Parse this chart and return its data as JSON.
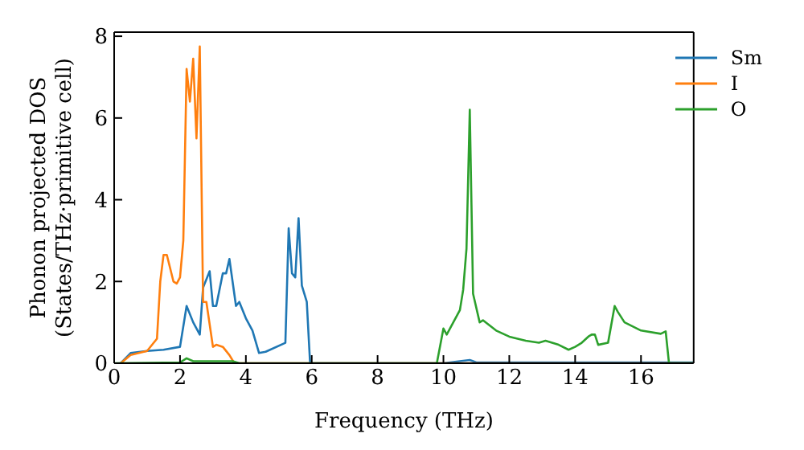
{
  "chart_data": {
    "type": "line",
    "xlabel": "Frequency (THz)",
    "ylabel": "Phonon projected DOS\n(States/THz·primitive cell)",
    "xlim": [
      0,
      17.6
    ],
    "xticks": [
      0,
      2,
      4,
      6,
      8,
      10,
      12,
      14,
      16
    ],
    "ylim": [
      0,
      8.1
    ],
    "yticks": [
      0,
      2,
      4,
      6,
      8
    ],
    "legend": "top right",
    "grid": false,
    "marker": "none",
    "line_style": "solid",
    "series": [
      {
        "name": "Sm",
        "color": "#1f77b4",
        "x": [
          0.2,
          0.5,
          1,
          1.5,
          2,
          2.2,
          2.4,
          2.6,
          2.7,
          2.9,
          3.0,
          3.1,
          3.3,
          3.4,
          3.5,
          3.7,
          3.8,
          4.0,
          4.2,
          4.4,
          4.6,
          5.2,
          5.3,
          5.4,
          5.5,
          5.6,
          5.7,
          5.85,
          5.95,
          10,
          10.8,
          11,
          17.6
        ],
        "values": [
          0,
          0.25,
          0.3,
          0.33,
          0.4,
          1.4,
          1.0,
          0.7,
          1.85,
          2.25,
          1.4,
          1.4,
          2.2,
          2.2,
          2.55,
          1.4,
          1.5,
          1.1,
          0.8,
          0.25,
          0.28,
          0.5,
          3.3,
          2.2,
          2.1,
          3.55,
          1.9,
          1.5,
          0,
          0,
          0.08,
          0.02,
          0.02
        ]
      },
      {
        "name": "I",
        "color": "#ff7f0e",
        "x": [
          0.2,
          0.5,
          1,
          1.3,
          1.4,
          1.5,
          1.6,
          1.8,
          1.9,
          2.0,
          2.1,
          2.2,
          2.3,
          2.4,
          2.5,
          2.6,
          2.7,
          2.8,
          3.0,
          3.1,
          3.3,
          3.5,
          3.65,
          17.6
        ],
        "values": [
          0,
          0.2,
          0.3,
          0.6,
          2.0,
          2.65,
          2.65,
          2.0,
          1.95,
          2.1,
          3.0,
          7.2,
          6.4,
          7.45,
          5.5,
          7.75,
          1.5,
          1.5,
          0.4,
          0.45,
          0.4,
          0.2,
          0,
          0
        ]
      },
      {
        "name": "O",
        "color": "#2ca02c",
        "x": [
          0,
          2,
          2.2,
          2.4,
          3.6,
          3.8,
          9.8,
          10,
          10.1,
          10.3,
          10.5,
          10.6,
          10.7,
          10.8,
          10.9,
          11.1,
          11.2,
          11.6,
          12,
          12.5,
          12.9,
          13.1,
          13.3,
          13.5,
          13.8,
          14,
          14.2,
          14.4,
          14.5,
          14.6,
          14.7,
          15.0,
          15.2,
          15.3,
          15.5,
          16,
          16.6,
          16.75,
          16.85,
          17.6
        ],
        "values": [
          0,
          0.02,
          0.12,
          0.05,
          0.05,
          0,
          0,
          0.85,
          0.7,
          1.0,
          1.3,
          1.8,
          2.8,
          6.2,
          1.7,
          1.0,
          1.05,
          0.8,
          0.65,
          0.55,
          0.5,
          0.55,
          0.5,
          0.45,
          0.33,
          0.4,
          0.5,
          0.65,
          0.7,
          0.7,
          0.45,
          0.5,
          1.4,
          1.25,
          1.0,
          0.8,
          0.72,
          0.78,
          0,
          0
        ]
      }
    ]
  }
}
